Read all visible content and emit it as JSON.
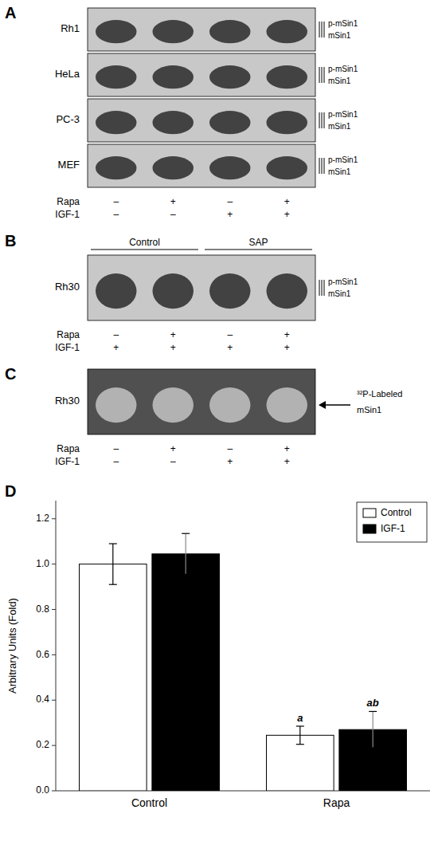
{
  "chart_data": [
    {
      "type": "blot",
      "title": "A",
      "color": "#c8c8c8",
      "categories": [
        "Rh1",
        "HeLa",
        "PC-3",
        "MEF"
      ],
      "series": [
        {
          "name": "Rapa",
          "labels": [
            "–",
            "+",
            "–",
            "+"
          ]
        },
        {
          "name": "IGF-1",
          "labels": [
            "–",
            "–",
            "+",
            "+"
          ]
        }
      ],
      "annotations": [
        "p-mSin1",
        "mSin1"
      ]
    },
    {
      "type": "blot",
      "title": "B",
      "color": "#c8c8c8",
      "categories": [
        "Rh30"
      ],
      "group_labels": [
        "Control",
        "SAP"
      ],
      "series": [
        {
          "name": "Rapa",
          "labels": [
            "–",
            "+",
            "–",
            "+"
          ]
        },
        {
          "name": "IGF-1",
          "labels": [
            "+",
            "+",
            "+",
            "+"
          ]
        }
      ],
      "annotations": [
        "p-mSin1",
        "mSin1"
      ]
    },
    {
      "type": "blot",
      "title": "C",
      "color": "#505050",
      "categories": [
        "Rh30"
      ],
      "series": [
        {
          "name": "Rapa",
          "labels": [
            "–",
            "+",
            "–",
            "+"
          ]
        },
        {
          "name": "IGF-1",
          "labels": [
            "–",
            "–",
            "+",
            "+"
          ]
        }
      ],
      "annotations": [
        "³²P-Labeled",
        "mSin1"
      ]
    },
    {
      "type": "bar",
      "title": "D",
      "categories": [
        "Control",
        "Rapa"
      ],
      "series": [
        {
          "name": "Control",
          "color": "white",
          "values": [
            1.0,
            0.245
          ],
          "errors": [
            0.09,
            0.04
          ]
        },
        {
          "name": "IGF-1",
          "color": "black",
          "values": [
            1.045,
            0.27
          ],
          "errors": [
            0.09,
            0.08
          ]
        }
      ],
      "ylabel": "Arbitrary Units (Fold)",
      "ylim": [
        0,
        1.28
      ],
      "yticks": [
        {
          "value": 0,
          "label": "0.0"
        },
        0.2,
        0.4,
        0.6,
        0.8,
        {
          "value": 1.0,
          "label": "1.0"
        },
        1.2
      ],
      "legend": "upper right",
      "grid": false,
      "annotations": [
        {
          "category": "Rapa",
          "series": "Control",
          "text": "a"
        },
        {
          "category": "Rapa",
          "series": "IGF-1",
          "text": "ab"
        }
      ]
    }
  ]
}
